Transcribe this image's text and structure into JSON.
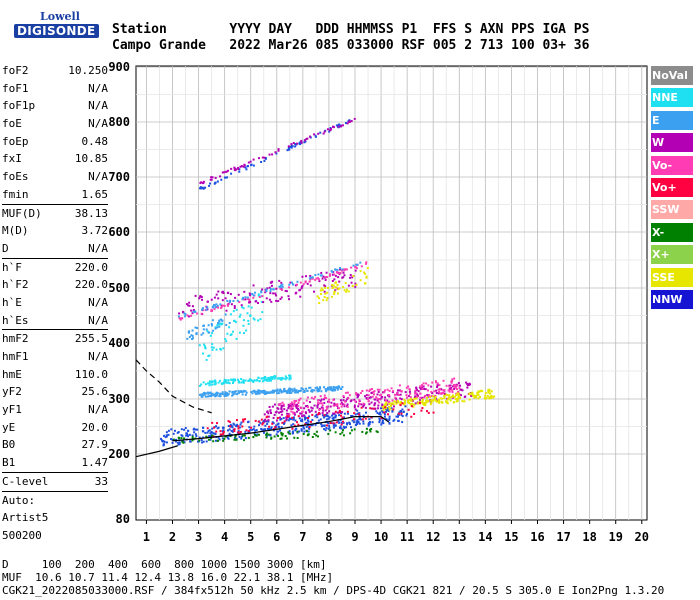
{
  "logo": {
    "line1": "Lowell",
    "line2": "DIGISONDE"
  },
  "header": {
    "row1": "Station        YYYY DAY   DDD HHMMSS P1  FFS S AXN PPS IGA PS",
    "row2": "Campo Grande   2022 Mar26 085 033000 RSF 005 2 713 100 03+ 36"
  },
  "params": [
    {
      "k": "foF2",
      "v": "10.250"
    },
    {
      "k": "foF1",
      "v": "N/A"
    },
    {
      "k": "foF1p",
      "v": "N/A"
    },
    {
      "k": "foE",
      "v": "N/A"
    },
    {
      "k": "foEp",
      "v": "0.48"
    },
    {
      "k": "fxI",
      "v": "10.85"
    },
    {
      "k": "foEs",
      "v": "N/A"
    },
    {
      "k": "fmin",
      "v": "1.65"
    },
    {
      "k": "MUF(D)",
      "v": "38.13",
      "sep": true
    },
    {
      "k": "M(D)",
      "v": "3.72"
    },
    {
      "k": "D",
      "v": "N/A"
    },
    {
      "k": "h`F",
      "v": "220.0",
      "sep": true
    },
    {
      "k": "h`F2",
      "v": "220.0"
    },
    {
      "k": "h`E",
      "v": "N/A"
    },
    {
      "k": "h`Es",
      "v": "N/A"
    },
    {
      "k": "hmF2",
      "v": "255.5",
      "sep": true
    },
    {
      "k": "hmF1",
      "v": "N/A"
    },
    {
      "k": "hmE",
      "v": "110.0"
    },
    {
      "k": "yF2",
      "v": "25.6"
    },
    {
      "k": "yF1",
      "v": "N/A"
    },
    {
      "k": "yE",
      "v": "20.0"
    },
    {
      "k": "B0",
      "v": "27.9"
    },
    {
      "k": "B1",
      "v": "1.47"
    },
    {
      "k": "C-level",
      "v": "33",
      "sep": true
    },
    {
      "k": "Auto:",
      "v": "",
      "sep": true
    },
    {
      "k": "Artist5",
      "v": ""
    },
    {
      "k": "500200",
      "v": ""
    }
  ],
  "legend": [
    {
      "label": "NoVal",
      "color": "#8c8c8c"
    },
    {
      "label": "NNE",
      "color": "#1ee0f0"
    },
    {
      "label": "E",
      "color": "#3ca0f0"
    },
    {
      "label": "W",
      "color": "#b400b4"
    },
    {
      "label": "Vo-",
      "color": "#ff3cb4"
    },
    {
      "label": "Vo+",
      "color": "#ff0040"
    },
    {
      "label": "SSW",
      "color": "#ffa8a8"
    },
    {
      "label": "X-",
      "color": "#008000"
    },
    {
      "label": "X+",
      "color": "#8cd24a"
    },
    {
      "label": "SSE",
      "color": "#e6e600"
    },
    {
      "label": "NNW",
      "color": "#1414d2"
    }
  ],
  "chart_data": {
    "type": "scatter",
    "x_ticks": [
      1,
      2,
      3,
      4,
      5,
      6,
      7,
      8,
      9,
      10,
      11,
      12,
      13,
      14,
      15,
      16,
      17,
      18,
      19,
      20
    ],
    "y_ticks": [
      80,
      200,
      300,
      400,
      500,
      600,
      700,
      800,
      900
    ],
    "xlim": [
      0.6,
      20.2
    ],
    "y_scale": "piecewise",
    "ylim": [
      80,
      910
    ],
    "grid": true,
    "traces": [
      {
        "name": "O-trace",
        "color": "#000000",
        "x": [
          2.0,
          3.0,
          4.0,
          5.0,
          6.0,
          7.0,
          8.0,
          9.0,
          10.0,
          10.3
        ],
        "y": [
          224,
          228,
          233,
          238,
          245,
          252,
          259,
          268,
          268,
          258
        ]
      },
      {
        "name": "profile",
        "color": "#000000",
        "dashed": true,
        "x": [
          0.6,
          1.0,
          1.5,
          2.0,
          2.8,
          3.5
        ],
        "y": [
          370,
          350,
          330,
          305,
          285,
          275
        ]
      },
      {
        "name": "bottom",
        "color": "#000000",
        "x": [
          0.6,
          1.5,
          2.2
        ],
        "y": [
          195,
          205,
          215
        ]
      }
    ],
    "clusters": [
      {
        "color": "#1e50e0",
        "x": [
          1.5,
          11.0
        ],
        "y": [
          215,
          290
        ],
        "n": 420
      },
      {
        "color": "#3ca0f0",
        "x": [
          3.0,
          8.5
        ],
        "y": [
          305,
          325
        ],
        "n": 260
      },
      {
        "color": "#1ee0f0",
        "x": [
          3.0,
          6.5
        ],
        "y": [
          325,
          345
        ],
        "n": 120
      },
      {
        "color": "#b400b4",
        "x": [
          5.5,
          13.5
        ],
        "y": [
          260,
          335
        ],
        "n": 280
      },
      {
        "color": "#ff3cb4",
        "x": [
          6.0,
          13.0
        ],
        "y": [
          270,
          340
        ],
        "n": 180
      },
      {
        "color": "#e6e600",
        "x": [
          10.0,
          14.3
        ],
        "y": [
          280,
          320
        ],
        "n": 180
      },
      {
        "color": "#008000",
        "x": [
          2.0,
          10.0
        ],
        "y": [
          220,
          250
        ],
        "n": 90
      },
      {
        "color": "#ff0040",
        "x": [
          3.0,
          12.0
        ],
        "y": [
          230,
          300
        ],
        "n": 100
      },
      {
        "color": "#1ee0f0",
        "x": [
          3.0,
          5.5
        ],
        "y": [
          360,
          500
        ],
        "n": 70
      },
      {
        "color": "#b400b4",
        "x": [
          2.2,
          9.0
        ],
        "y": [
          445,
          540
        ],
        "n": 140
      },
      {
        "color": "#e6e600",
        "x": [
          7.5,
          9.5
        ],
        "y": [
          470,
          540
        ],
        "n": 50
      },
      {
        "color": "#3ca0f0",
        "x": [
          2.5,
          4.2
        ],
        "y": [
          400,
          460
        ],
        "n": 40
      }
    ]
  },
  "footer": {
    "line1": "D     100  200  400  600  800 1000 1500 3000 [km]",
    "line2": "MUF  10.6 10.7 11.4 12.4 13.8 16.0 22.1 38.1 [MHz]",
    "line3": "CGK21_2022085033000.RSF / 384fx512h 50 kHz 2.5 km / DPS-4D CGK21 821 / 20.5 S 305.0 E Ion2Png 1.3.20"
  }
}
